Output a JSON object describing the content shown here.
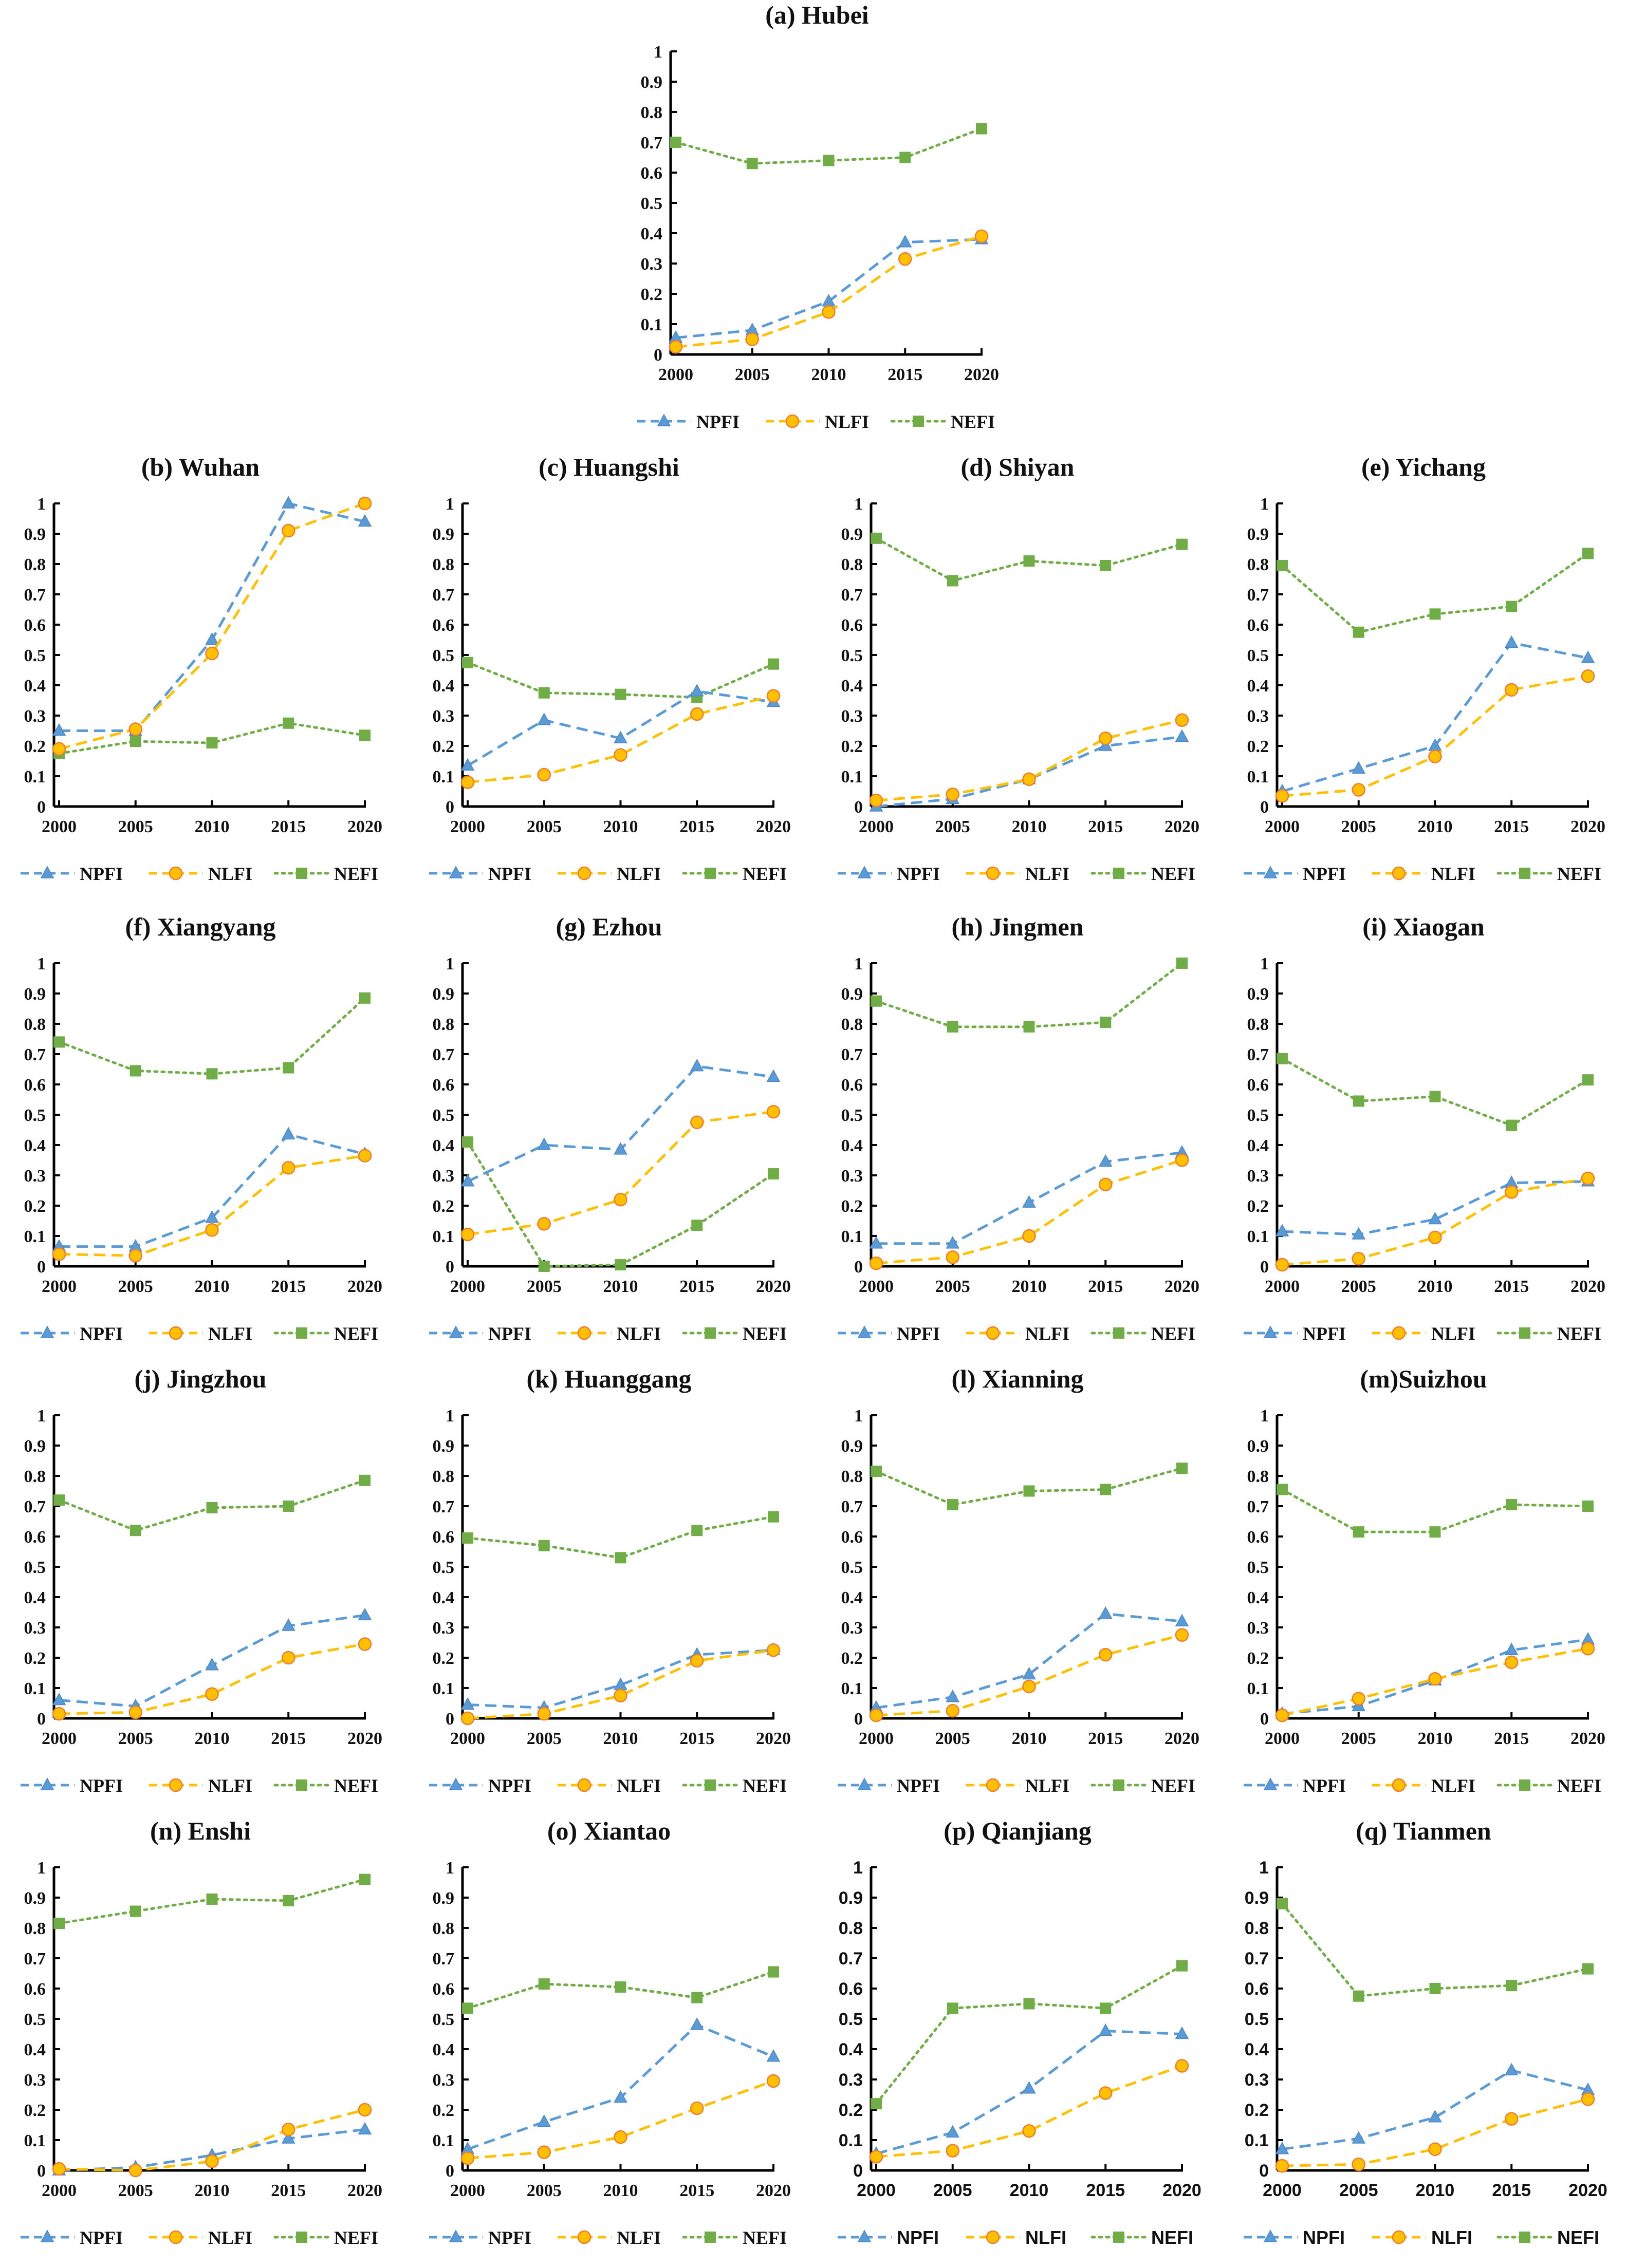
{
  "figure": {
    "series_names": [
      "NPFI",
      "NLFI",
      "NEFI"
    ],
    "colors": {
      "NPFI": "#5b9bd5",
      "NLFI": "#ffc000",
      "NEFI": "#70ad47",
      "NLFI_marker_edge": "#ed7d31"
    },
    "markers": {
      "NPFI": "triangle",
      "NLFI": "circle",
      "NEFI": "square"
    },
    "line_styles": {
      "NPFI": "dashed",
      "NLFI": "dashed",
      "NEFI": "dotted"
    }
  },
  "chart_data": [
    {
      "type": "line",
      "title": "(a) Hubei",
      "x": [
        "2000",
        "2005",
        "2010",
        "2015",
        "2020"
      ],
      "ylim": [
        0,
        1
      ],
      "yticks": [
        "0",
        "0.1",
        "0.2",
        "0.3",
        "0.4",
        "0.5",
        "0.6",
        "0.7",
        "0.8",
        "0.9",
        "1"
      ],
      "legend": "bottom",
      "grid": false,
      "font": "serif",
      "series": [
        {
          "name": "NPFI",
          "values": [
            0.055,
            0.08,
            0.175,
            0.37,
            0.38
          ]
        },
        {
          "name": "NLFI",
          "values": [
            0.025,
            0.05,
            0.14,
            0.315,
            0.39
          ]
        },
        {
          "name": "NEFI",
          "values": [
            0.7,
            0.63,
            0.64,
            0.65,
            0.745
          ]
        }
      ]
    },
    {
      "type": "line",
      "title": "(b) Wuhan",
      "x": [
        "2000",
        "2005",
        "2010",
        "2015",
        "2020"
      ],
      "ylim": [
        0,
        1
      ],
      "yticks": [
        "0",
        "0.1",
        "0.2",
        "0.3",
        "0.4",
        "0.5",
        "0.6",
        "0.7",
        "0.8",
        "0.9",
        "1"
      ],
      "legend": "bottom",
      "grid": false,
      "font": "serif",
      "series": [
        {
          "name": "NPFI",
          "values": [
            0.25,
            0.25,
            0.55,
            1.0,
            0.94
          ]
        },
        {
          "name": "NLFI",
          "values": [
            0.19,
            0.255,
            0.505,
            0.91,
            1.0
          ]
        },
        {
          "name": "NEFI",
          "values": [
            0.175,
            0.215,
            0.21,
            0.275,
            0.235
          ]
        }
      ]
    },
    {
      "type": "line",
      "title": "(c) Huangshi",
      "x": [
        "2000",
        "2005",
        "2010",
        "2015",
        "2020"
      ],
      "ylim": [
        0,
        1
      ],
      "yticks": [
        "0",
        "0.1",
        "0.2",
        "0.3",
        "0.4",
        "0.5",
        "0.6",
        "0.7",
        "0.8",
        "0.9",
        "1"
      ],
      "legend": "bottom",
      "grid": false,
      "font": "serif",
      "series": [
        {
          "name": "NPFI",
          "values": [
            0.135,
            0.285,
            0.225,
            0.38,
            0.345
          ]
        },
        {
          "name": "NLFI",
          "values": [
            0.08,
            0.105,
            0.17,
            0.305,
            0.365
          ]
        },
        {
          "name": "NEFI",
          "values": [
            0.475,
            0.375,
            0.37,
            0.36,
            0.47
          ]
        }
      ]
    },
    {
      "type": "line",
      "title": "(d) Shiyan",
      "x": [
        "2000",
        "2005",
        "2010",
        "2015",
        "2020"
      ],
      "ylim": [
        0,
        1
      ],
      "yticks": [
        "0",
        "0.1",
        "0.2",
        "0.3",
        "0.4",
        "0.5",
        "0.6",
        "0.7",
        "0.8",
        "0.9",
        "1"
      ],
      "legend": "bottom",
      "grid": false,
      "font": "serif",
      "series": [
        {
          "name": "NPFI",
          "values": [
            0.0,
            0.025,
            0.09,
            0.2,
            0.23
          ]
        },
        {
          "name": "NLFI",
          "values": [
            0.02,
            0.04,
            0.09,
            0.225,
            0.285
          ]
        },
        {
          "name": "NEFI",
          "values": [
            0.885,
            0.745,
            0.81,
            0.795,
            0.865
          ]
        }
      ]
    },
    {
      "type": "line",
      "title": "(e) Yichang",
      "x": [
        "2000",
        "2005",
        "2010",
        "2015",
        "2020"
      ],
      "ylim": [
        0,
        1
      ],
      "yticks": [
        "0",
        "0.1",
        "0.2",
        "0.3",
        "0.4",
        "0.5",
        "0.6",
        "0.7",
        "0.8",
        "0.9",
        "1"
      ],
      "legend": "bottom",
      "grid": false,
      "font": "serif",
      "series": [
        {
          "name": "NPFI",
          "values": [
            0.05,
            0.125,
            0.2,
            0.54,
            0.49
          ]
        },
        {
          "name": "NLFI",
          "values": [
            0.035,
            0.055,
            0.165,
            0.385,
            0.43
          ]
        },
        {
          "name": "NEFI",
          "values": [
            0.795,
            0.575,
            0.635,
            0.66,
            0.835
          ]
        }
      ]
    },
    {
      "type": "line",
      "title": "(f) Xiangyang",
      "x": [
        "2000",
        "2005",
        "2010",
        "2015",
        "2020"
      ],
      "ylim": [
        0,
        1
      ],
      "yticks": [
        "0",
        "0.1",
        "0.2",
        "0.3",
        "0.4",
        "0.5",
        "0.6",
        "0.7",
        "0.8",
        "0.9",
        "1"
      ],
      "legend": "bottom",
      "grid": false,
      "font": "serif",
      "series": [
        {
          "name": "NPFI",
          "values": [
            0.065,
            0.065,
            0.16,
            0.435,
            0.37
          ]
        },
        {
          "name": "NLFI",
          "values": [
            0.04,
            0.035,
            0.12,
            0.325,
            0.365
          ]
        },
        {
          "name": "NEFI",
          "values": [
            0.74,
            0.645,
            0.635,
            0.655,
            0.885
          ]
        }
      ]
    },
    {
      "type": "line",
      "title": "(g) Ezhou",
      "x": [
        "2000",
        "2005",
        "2010",
        "2015",
        "2020"
      ],
      "ylim": [
        0,
        1
      ],
      "yticks": [
        "0",
        "0.1",
        "0.2",
        "0.3",
        "0.4",
        "0.5",
        "0.6",
        "0.7",
        "0.8",
        "0.9",
        "1"
      ],
      "legend": "bottom",
      "grid": false,
      "font": "serif",
      "series": [
        {
          "name": "NPFI",
          "values": [
            0.28,
            0.4,
            0.385,
            0.66,
            0.625
          ]
        },
        {
          "name": "NLFI",
          "values": [
            0.105,
            0.14,
            0.22,
            0.475,
            0.51
          ]
        },
        {
          "name": "NEFI",
          "values": [
            0.41,
            0.0,
            0.005,
            0.135,
            0.305
          ]
        }
      ]
    },
    {
      "type": "line",
      "title": "(h) Jingmen",
      "x": [
        "2000",
        "2005",
        "2010",
        "2015",
        "2020"
      ],
      "ylim": [
        0,
        1
      ],
      "yticks": [
        "0",
        "0.1",
        "0.2",
        "0.3",
        "0.4",
        "0.5",
        "0.6",
        "0.7",
        "0.8",
        "0.9",
        "1"
      ],
      "legend": "bottom",
      "grid": false,
      "font": "serif",
      "series": [
        {
          "name": "NPFI",
          "values": [
            0.075,
            0.075,
            0.21,
            0.345,
            0.375
          ]
        },
        {
          "name": "NLFI",
          "values": [
            0.01,
            0.03,
            0.1,
            0.27,
            0.35
          ]
        },
        {
          "name": "NEFI",
          "values": [
            0.875,
            0.79,
            0.79,
            0.805,
            1.0
          ]
        }
      ]
    },
    {
      "type": "line",
      "title": "(i) Xiaogan",
      "x": [
        "2000",
        "2005",
        "2010",
        "2015",
        "2020"
      ],
      "ylim": [
        0,
        1
      ],
      "yticks": [
        "0",
        "0.1",
        "0.2",
        "0.3",
        "0.4",
        "0.5",
        "0.6",
        "0.7",
        "0.8",
        "0.9",
        "1"
      ],
      "legend": "bottom",
      "grid": false,
      "font": "serif",
      "series": [
        {
          "name": "NPFI",
          "values": [
            0.115,
            0.105,
            0.155,
            0.275,
            0.28
          ]
        },
        {
          "name": "NLFI",
          "values": [
            0.005,
            0.025,
            0.095,
            0.245,
            0.29
          ]
        },
        {
          "name": "NEFI",
          "values": [
            0.685,
            0.545,
            0.56,
            0.465,
            0.615
          ]
        }
      ]
    },
    {
      "type": "line",
      "title": "(j) Jingzhou",
      "x": [
        "2000",
        "2005",
        "2010",
        "2015",
        "2020"
      ],
      "ylim": [
        0,
        1
      ],
      "yticks": [
        "0",
        "0.1",
        "0.2",
        "0.3",
        "0.4",
        "0.5",
        "0.6",
        "0.7",
        "0.8",
        "0.9",
        "1"
      ],
      "legend": "bottom",
      "grid": false,
      "font": "serif",
      "series": [
        {
          "name": "NPFI",
          "values": [
            0.06,
            0.04,
            0.175,
            0.305,
            0.34
          ]
        },
        {
          "name": "NLFI",
          "values": [
            0.015,
            0.02,
            0.08,
            0.2,
            0.245
          ]
        },
        {
          "name": "NEFI",
          "values": [
            0.72,
            0.62,
            0.695,
            0.7,
            0.785
          ]
        }
      ]
    },
    {
      "type": "line",
      "title": "(k) Huanggang",
      "x": [
        "2000",
        "2005",
        "2010",
        "2015",
        "2020"
      ],
      "ylim": [
        0,
        1
      ],
      "yticks": [
        "0",
        "0.1",
        "0.2",
        "0.3",
        "0.4",
        "0.5",
        "0.6",
        "0.7",
        "0.8",
        "0.9",
        "1"
      ],
      "legend": "bottom",
      "grid": false,
      "font": "serif",
      "series": [
        {
          "name": "NPFI",
          "values": [
            0.045,
            0.035,
            0.11,
            0.21,
            0.225
          ]
        },
        {
          "name": "NLFI",
          "values": [
            0.0,
            0.015,
            0.075,
            0.19,
            0.225
          ]
        },
        {
          "name": "NEFI",
          "values": [
            0.595,
            0.57,
            0.53,
            0.62,
            0.665
          ]
        }
      ]
    },
    {
      "type": "line",
      "title": "(l) Xianning",
      "x": [
        "2000",
        "2005",
        "2010",
        "2015",
        "2020"
      ],
      "ylim": [
        0,
        1
      ],
      "yticks": [
        "0",
        "0.1",
        "0.2",
        "0.3",
        "0.4",
        "0.5",
        "0.6",
        "0.7",
        "0.8",
        "0.9",
        "1"
      ],
      "legend": "bottom",
      "grid": false,
      "font": "serif",
      "series": [
        {
          "name": "NPFI",
          "values": [
            0.035,
            0.07,
            0.145,
            0.345,
            0.32
          ]
        },
        {
          "name": "NLFI",
          "values": [
            0.01,
            0.025,
            0.105,
            0.21,
            0.275
          ]
        },
        {
          "name": "NEFI",
          "values": [
            0.815,
            0.705,
            0.75,
            0.755,
            0.825
          ]
        }
      ]
    },
    {
      "type": "line",
      "title": "(m)Suizhou",
      "x": [
        "2000",
        "2005",
        "2010",
        "2015",
        "2020"
      ],
      "ylim": [
        0,
        1
      ],
      "yticks": [
        "0",
        "0.1",
        "0.2",
        "0.3",
        "0.4",
        "0.5",
        "0.6",
        "0.7",
        "0.8",
        "0.9",
        "1"
      ],
      "legend": "bottom",
      "grid": false,
      "font": "serif",
      "series": [
        {
          "name": "NPFI",
          "values": [
            0.015,
            0.04,
            0.125,
            0.225,
            0.26
          ]
        },
        {
          "name": "NLFI",
          "values": [
            0.01,
            0.065,
            0.13,
            0.185,
            0.23
          ]
        },
        {
          "name": "NEFI",
          "values": [
            0.755,
            0.615,
            0.615,
            0.705,
            0.7
          ]
        }
      ]
    },
    {
      "type": "line",
      "title": "(n) Enshi",
      "x": [
        "2000",
        "2005",
        "2010",
        "2015",
        "2020"
      ],
      "ylim": [
        0,
        1
      ],
      "yticks": [
        "0",
        "0.1",
        "0.2",
        "0.3",
        "0.4",
        "0.5",
        "0.6",
        "0.7",
        "0.8",
        "0.9",
        "1"
      ],
      "legend": "bottom",
      "grid": false,
      "font": "serif",
      "series": [
        {
          "name": "NPFI",
          "values": [
            0.0,
            0.01,
            0.05,
            0.105,
            0.135
          ]
        },
        {
          "name": "NLFI",
          "values": [
            0.005,
            0.0,
            0.03,
            0.135,
            0.2
          ]
        },
        {
          "name": "NEFI",
          "values": [
            0.815,
            0.855,
            0.895,
            0.89,
            0.96
          ]
        }
      ]
    },
    {
      "type": "line",
      "title": "(o) Xiantao",
      "x": [
        "2000",
        "2005",
        "2010",
        "2015",
        "2020"
      ],
      "ylim": [
        0,
        1
      ],
      "yticks": [
        "0",
        "0.1",
        "0.2",
        "0.3",
        "0.4",
        "0.5",
        "0.6",
        "0.7",
        "0.8",
        "0.9",
        "1"
      ],
      "legend": "bottom",
      "grid": false,
      "font": "serif",
      "series": [
        {
          "name": "NPFI",
          "values": [
            0.07,
            0.16,
            0.24,
            0.48,
            0.375
          ]
        },
        {
          "name": "NLFI",
          "values": [
            0.04,
            0.06,
            0.11,
            0.205,
            0.295
          ]
        },
        {
          "name": "NEFI",
          "values": [
            0.535,
            0.615,
            0.605,
            0.57,
            0.655
          ]
        }
      ]
    },
    {
      "type": "line",
      "title": "(p) Qianjiang",
      "x": [
        "2000",
        "2005",
        "2010",
        "2015",
        "2020"
      ],
      "ylim": [
        0,
        1
      ],
      "yticks": [
        "0",
        "0.1",
        "0.2",
        "0.3",
        "0.4",
        "0.5",
        "0.6",
        "0.7",
        "0.8",
        "0.9",
        "1"
      ],
      "legend": "bottom",
      "grid": false,
      "font": "sans",
      "series": [
        {
          "name": "NPFI",
          "values": [
            0.055,
            0.125,
            0.27,
            0.46,
            0.45
          ]
        },
        {
          "name": "NLFI",
          "values": [
            0.045,
            0.065,
            0.13,
            0.255,
            0.345
          ]
        },
        {
          "name": "NEFI",
          "values": [
            0.22,
            0.535,
            0.55,
            0.535,
            0.675
          ]
        }
      ]
    },
    {
      "type": "line",
      "title": "(q) Tianmen",
      "x": [
        "2000",
        "2005",
        "2010",
        "2015",
        "2020"
      ],
      "ylim": [
        0,
        1
      ],
      "yticks": [
        "0",
        "0.1",
        "0.2",
        "0.3",
        "0.4",
        "0.5",
        "0.6",
        "0.7",
        "0.8",
        "0.9",
        "1"
      ],
      "legend": "bottom",
      "grid": false,
      "font": "sans",
      "series": [
        {
          "name": "NPFI",
          "values": [
            0.07,
            0.105,
            0.175,
            0.33,
            0.265
          ]
        },
        {
          "name": "NLFI",
          "values": [
            0.015,
            0.02,
            0.07,
            0.17,
            0.235
          ]
        },
        {
          "name": "NEFI",
          "values": [
            0.88,
            0.575,
            0.6,
            0.61,
            0.665
          ]
        }
      ]
    }
  ]
}
